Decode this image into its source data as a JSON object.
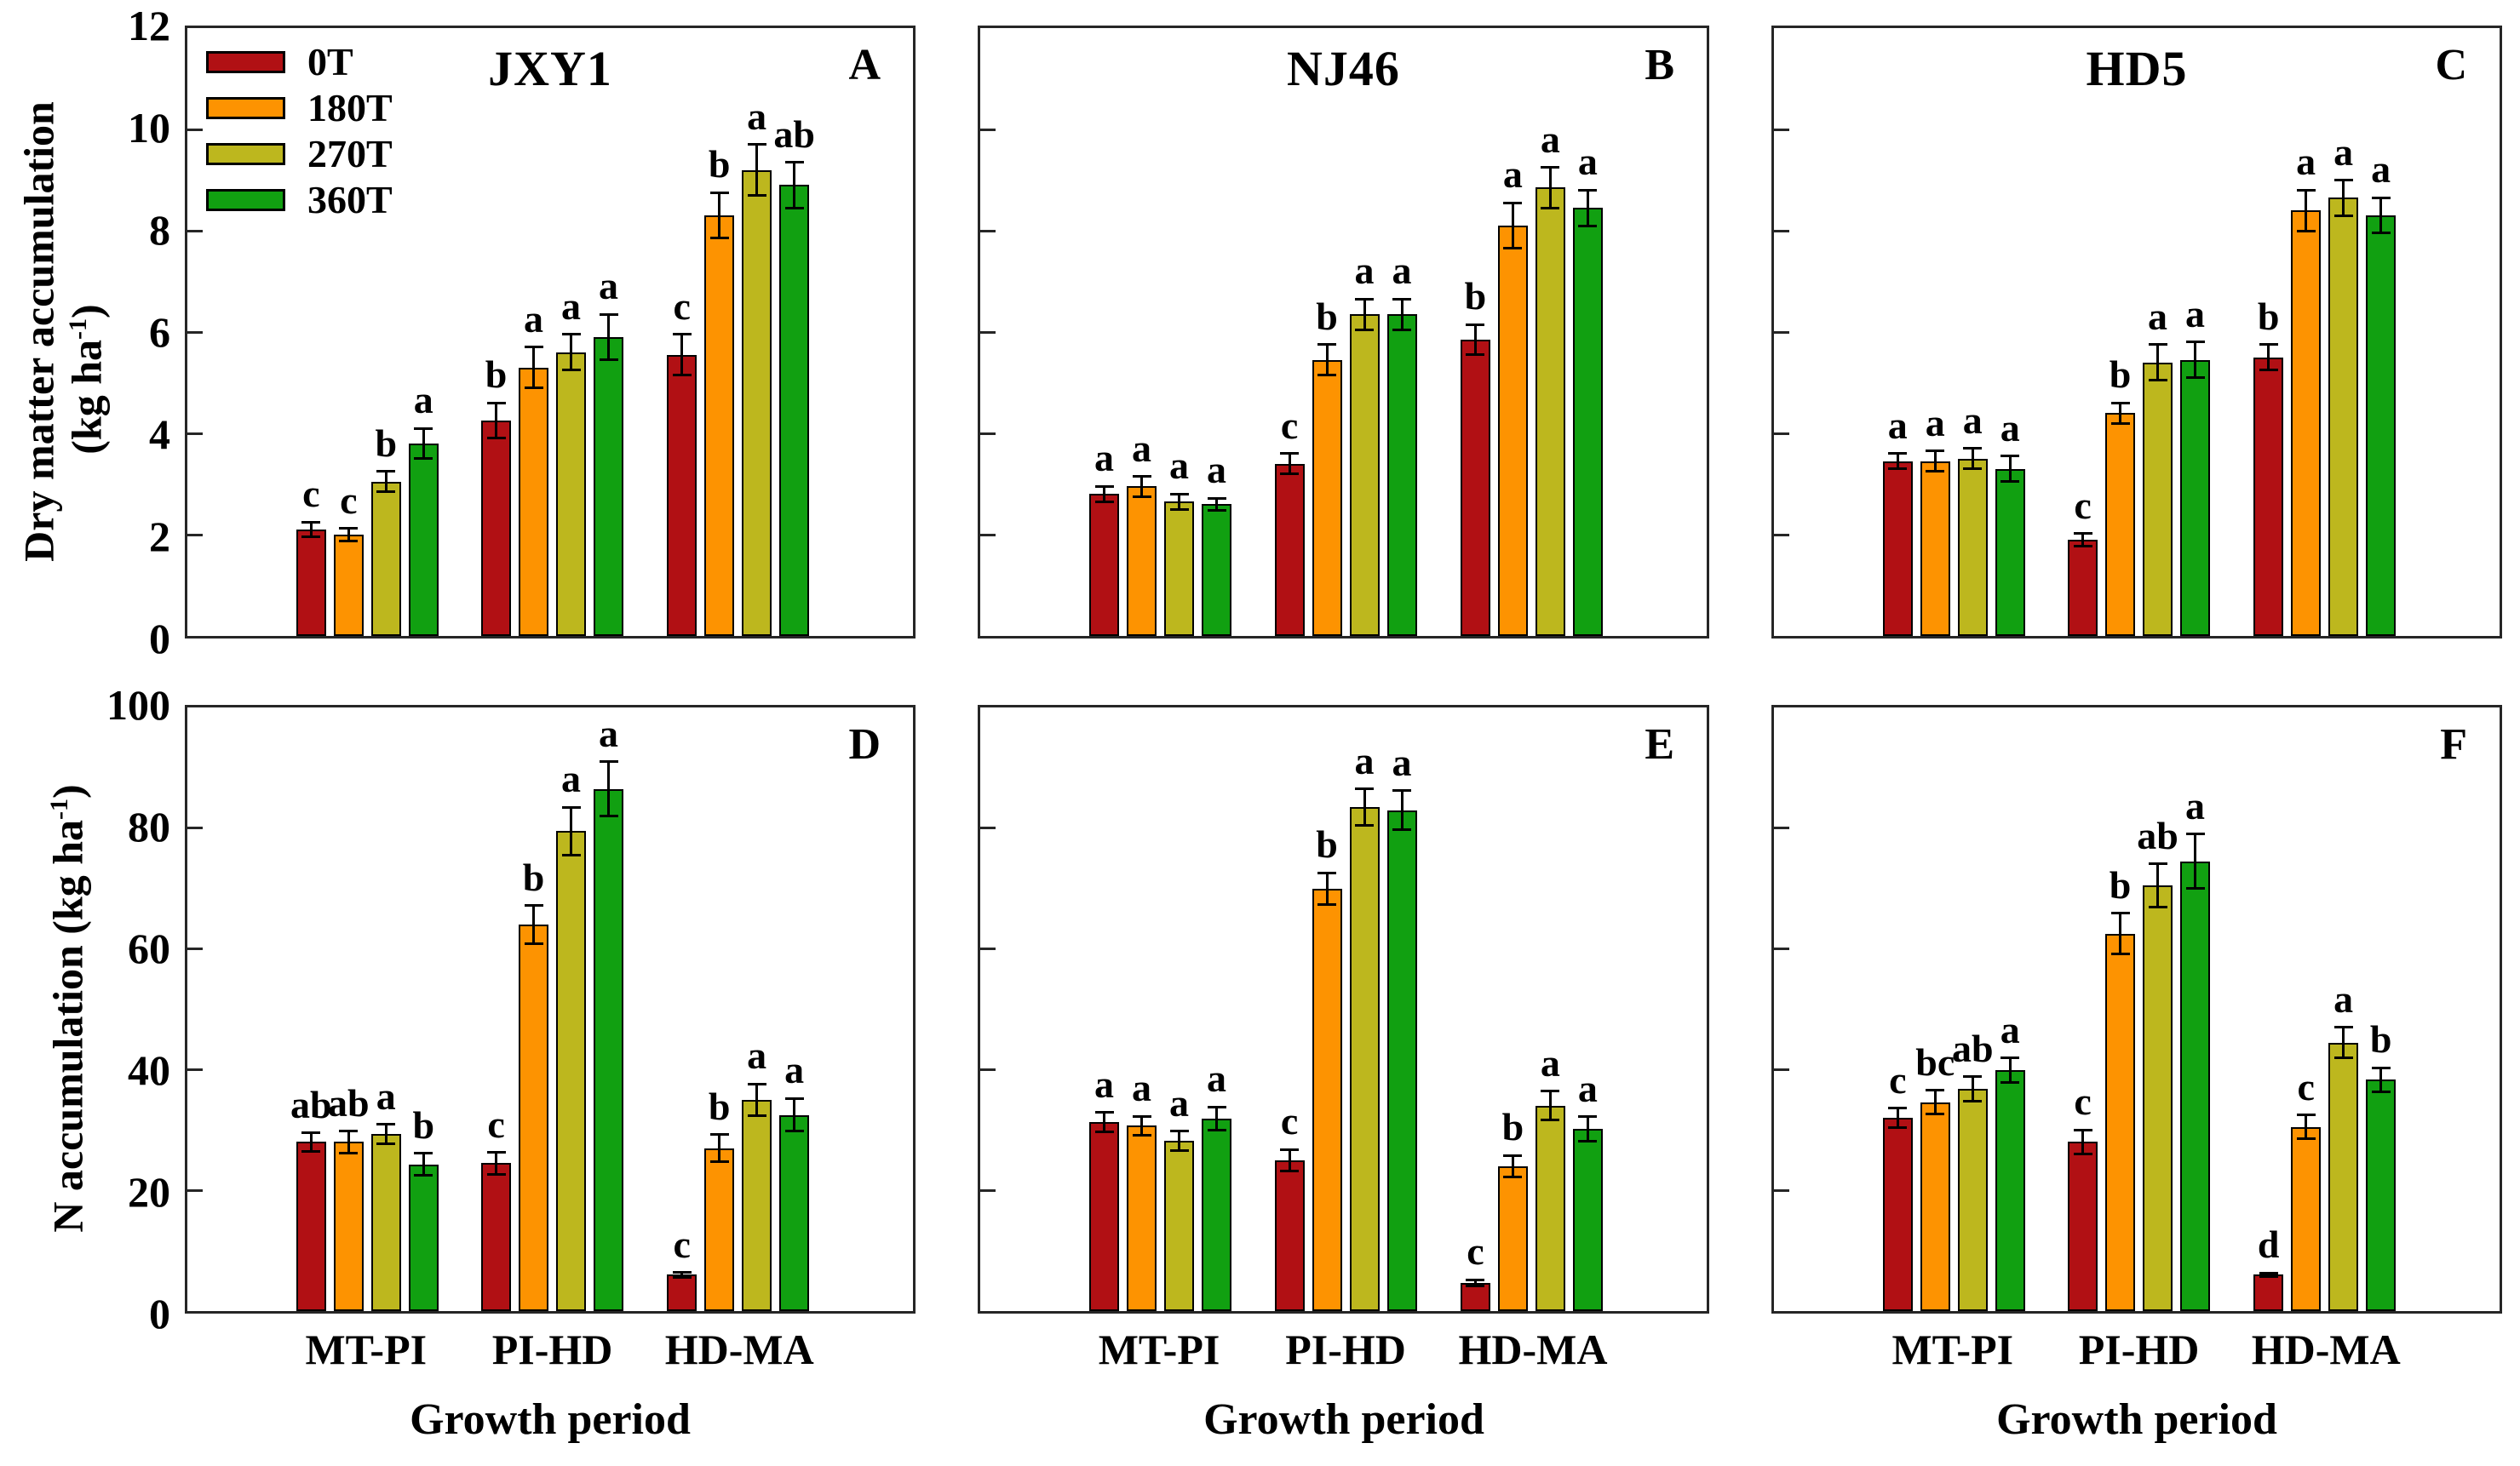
{
  "figure": {
    "y_axis_row1": {
      "label_line1": "Dry matter accumulation",
      "unit_prefix": "(kg ha",
      "unit_sup": "-1",
      "unit_suffix": ")"
    },
    "y_axis_row2": {
      "label_prefix": "N accumulation (kg ha",
      "label_sup": "-1",
      "label_suffix": ")"
    },
    "x_axis": {
      "label": "Growth period",
      "categories": [
        "MT-PI",
        "PI-HD",
        "HD-MA"
      ]
    },
    "legend": {
      "items": [
        {
          "label": "0T",
          "color": "#b11014"
        },
        {
          "label": "180T",
          "color": "#fd9301"
        },
        {
          "label": "270T",
          "color": "#bdb71e"
        },
        {
          "label": "360T",
          "color": "#11a011"
        }
      ]
    }
  },
  "chart_data": [
    {
      "type": "bar",
      "panel_label": "A",
      "title": "JXY1",
      "categories": [
        "MT-PI",
        "PI-HD",
        "HD-MA"
      ],
      "ylim": [
        0,
        12
      ],
      "yticks": [
        0,
        2,
        4,
        6,
        8,
        10,
        12
      ],
      "series": [
        {
          "name": "0T",
          "color": "#b11014",
          "values": [
            2.1,
            4.25,
            5.55
          ],
          "errors": [
            0.15,
            0.35,
            0.4
          ],
          "letters": [
            "c",
            "b",
            "c"
          ]
        },
        {
          "name": "180T",
          "color": "#fd9301",
          "values": [
            2.0,
            5.3,
            8.3
          ],
          "errors": [
            0.12,
            0.4,
            0.45
          ],
          "letters": [
            "c",
            "a",
            "b"
          ]
        },
        {
          "name": "270T",
          "color": "#bdb71e",
          "values": [
            3.05,
            5.6,
            9.2
          ],
          "errors": [
            0.2,
            0.35,
            0.5
          ],
          "letters": [
            "b",
            "a",
            "a"
          ]
        },
        {
          "name": "360T",
          "color": "#11a011",
          "values": [
            3.8,
            5.9,
            8.9
          ],
          "errors": [
            0.3,
            0.45,
            0.45
          ],
          "letters": [
            "a",
            "a",
            "ab"
          ]
        }
      ]
    },
    {
      "type": "bar",
      "panel_label": "B",
      "title": "NJ46",
      "categories": [
        "MT-PI",
        "PI-HD",
        "HD-MA"
      ],
      "ylim": [
        0,
        12
      ],
      "yticks": [
        0,
        2,
        4,
        6,
        8,
        10,
        12
      ],
      "series": [
        {
          "name": "0T",
          "color": "#b11014",
          "values": [
            2.8,
            3.4,
            5.85
          ],
          "errors": [
            0.15,
            0.2,
            0.3
          ],
          "letters": [
            "a",
            "c",
            "b"
          ]
        },
        {
          "name": "180T",
          "color": "#fd9301",
          "values": [
            2.95,
            5.45,
            8.1
          ],
          "errors": [
            0.2,
            0.3,
            0.45
          ],
          "letters": [
            "a",
            "b",
            "a"
          ]
        },
        {
          "name": "270T",
          "color": "#bdb71e",
          "values": [
            2.65,
            6.35,
            8.85
          ],
          "errors": [
            0.15,
            0.3,
            0.4
          ],
          "letters": [
            "a",
            "a",
            "a"
          ]
        },
        {
          "name": "360T",
          "color": "#11a011",
          "values": [
            2.6,
            6.35,
            8.45
          ],
          "errors": [
            0.12,
            0.3,
            0.35
          ],
          "letters": [
            "a",
            "a",
            "a"
          ]
        }
      ]
    },
    {
      "type": "bar",
      "panel_label": "C",
      "title": "HD5",
      "categories": [
        "MT-PI",
        "PI-HD",
        "HD-MA"
      ],
      "ylim": [
        0,
        12
      ],
      "yticks": [
        0,
        2,
        4,
        6,
        8,
        10,
        12
      ],
      "series": [
        {
          "name": "0T",
          "color": "#b11014",
          "values": [
            3.45,
            1.9,
            5.5
          ],
          "errors": [
            0.15,
            0.12,
            0.25
          ],
          "letters": [
            "a",
            "c",
            "b"
          ]
        },
        {
          "name": "180T",
          "color": "#fd9301",
          "values": [
            3.45,
            4.4,
            8.4
          ],
          "errors": [
            0.2,
            0.2,
            0.4
          ],
          "letters": [
            "a",
            "b",
            "a"
          ]
        },
        {
          "name": "270T",
          "color": "#bdb71e",
          "values": [
            3.5,
            5.4,
            8.65
          ],
          "errors": [
            0.2,
            0.35,
            0.35
          ],
          "letters": [
            "a",
            "a",
            "a"
          ]
        },
        {
          "name": "360T",
          "color": "#11a011",
          "values": [
            3.3,
            5.45,
            8.3
          ],
          "errors": [
            0.25,
            0.35,
            0.35
          ],
          "letters": [
            "a",
            "a",
            "a"
          ]
        }
      ]
    },
    {
      "type": "bar",
      "panel_label": "D",
      "title": "",
      "categories": [
        "MT-PI",
        "PI-HD",
        "HD-MA"
      ],
      "ylim": [
        0,
        100
      ],
      "yticks": [
        0,
        20,
        40,
        60,
        80,
        100
      ],
      "series": [
        {
          "name": "0T",
          "color": "#b11014",
          "values": [
            28,
            24.5,
            6
          ],
          "errors": [
            1.5,
            1.8,
            0.4
          ],
          "letters": [
            "ab",
            "c",
            "c"
          ]
        },
        {
          "name": "180T",
          "color": "#fd9301",
          "values": [
            28,
            64,
            27
          ],
          "errors": [
            1.8,
            3.2,
            2.2
          ],
          "letters": [
            "ab",
            "b",
            "b"
          ]
        },
        {
          "name": "270T",
          "color": "#bdb71e",
          "values": [
            29.3,
            79.5,
            35
          ],
          "errors": [
            1.6,
            4.0,
            2.6
          ],
          "letters": [
            "a",
            "a",
            "a"
          ]
        },
        {
          "name": "360T",
          "color": "#11a011",
          "values": [
            24.3,
            86.5,
            32.5
          ],
          "errors": [
            1.8,
            4.5,
            2.7
          ],
          "letters": [
            "b",
            "a",
            "a"
          ]
        }
      ]
    },
    {
      "type": "bar",
      "panel_label": "E",
      "title": "",
      "categories": [
        "MT-PI",
        "PI-HD",
        "HD-MA"
      ],
      "ylim": [
        0,
        100
      ],
      "yticks": [
        0,
        20,
        40,
        60,
        80,
        100
      ],
      "series": [
        {
          "name": "0T",
          "color": "#b11014",
          "values": [
            31.3,
            25,
            4.7
          ],
          "errors": [
            1.6,
            1.8,
            0.5
          ],
          "letters": [
            "a",
            "c",
            "c"
          ]
        },
        {
          "name": "180T",
          "color": "#fd9301",
          "values": [
            30.7,
            70,
            24
          ],
          "errors": [
            1.6,
            2.6,
            1.8
          ],
          "letters": [
            "a",
            "b",
            "b"
          ]
        },
        {
          "name": "270T",
          "color": "#bdb71e",
          "values": [
            28.2,
            83.5,
            34
          ],
          "errors": [
            1.6,
            3.0,
            2.4
          ],
          "letters": [
            "a",
            "a",
            "a"
          ]
        },
        {
          "name": "360T",
          "color": "#11a011",
          "values": [
            31.9,
            83,
            30.2
          ],
          "errors": [
            1.9,
            3.2,
            2.0
          ],
          "letters": [
            "a",
            "a",
            "a"
          ]
        }
      ]
    },
    {
      "type": "bar",
      "panel_label": "F",
      "title": "",
      "categories": [
        "MT-PI",
        "PI-HD",
        "HD-MA"
      ],
      "ylim": [
        0,
        100
      ],
      "yticks": [
        0,
        20,
        40,
        60,
        80,
        100
      ],
      "series": [
        {
          "name": "0T",
          "color": "#b11014",
          "values": [
            32,
            28,
            6
          ],
          "errors": [
            1.6,
            2.0,
            0.3
          ],
          "letters": [
            "c",
            "c",
            "d"
          ]
        },
        {
          "name": "180T",
          "color": "#fd9301",
          "values": [
            34.6,
            62.5,
            30.5
          ],
          "errors": [
            2.0,
            3.4,
            2.0
          ],
          "letters": [
            "bc",
            "b",
            "c"
          ]
        },
        {
          "name": "270T",
          "color": "#bdb71e",
          "values": [
            36.8,
            70.5,
            44.5
          ],
          "errors": [
            2.0,
            3.6,
            2.5
          ],
          "letters": [
            "ab",
            "ab",
            "a"
          ]
        },
        {
          "name": "360T",
          "color": "#11a011",
          "values": [
            39.9,
            74.5,
            38.3
          ],
          "errors": [
            2.0,
            4.5,
            2.0
          ],
          "letters": [
            "a",
            "a",
            "b"
          ]
        }
      ]
    }
  ]
}
